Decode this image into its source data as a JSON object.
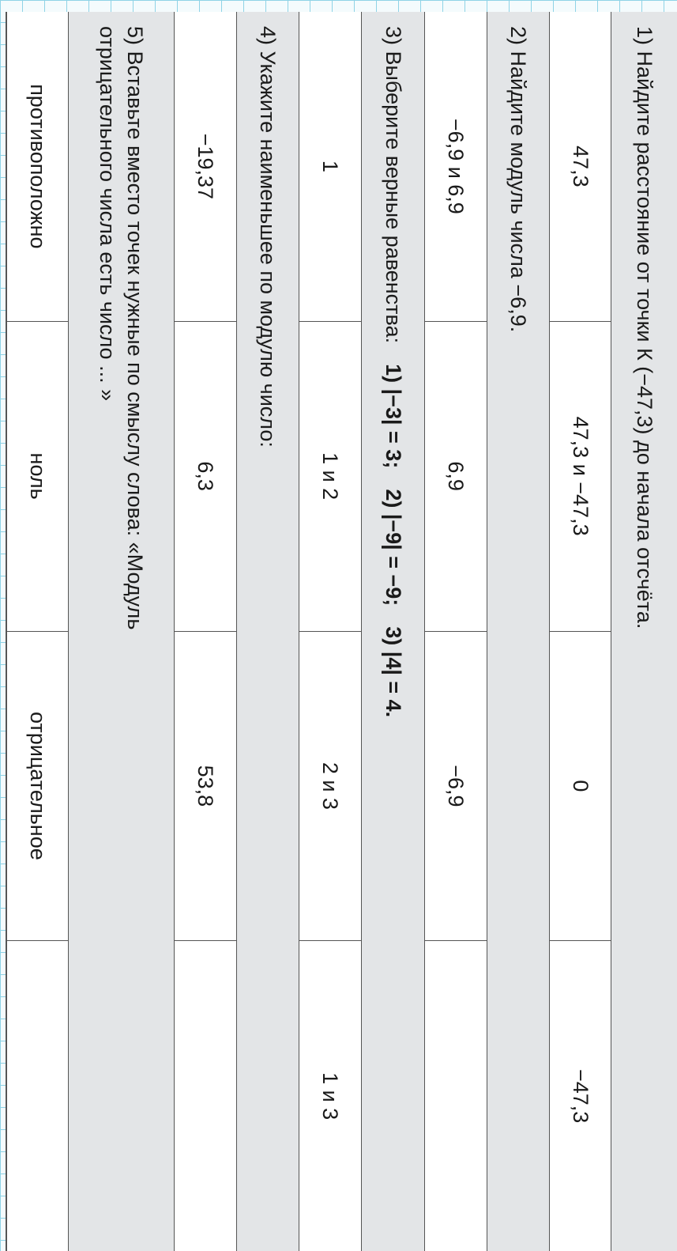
{
  "questions": [
    {
      "text": "1) Найдите расстояние от точки К (−47,3) до начала отсчёта.",
      "options": [
        "47,3",
        "47,3 и −47,3",
        "0",
        "−47,3"
      ]
    },
    {
      "text": "2) Найдите модуль числа −6,9.",
      "options": [
        "−6,9 и 6,9",
        "6,9",
        "−6,9",
        ""
      ]
    },
    {
      "text": "3) Выберите верные равенства:",
      "equalities": [
        "1) |−3| = 3;",
        "2) |−9| = −9;",
        "3) |4| = 4."
      ],
      "options": [
        "1",
        "1 и 2",
        "2 и 3",
        "1 и 3"
      ]
    },
    {
      "text": "4) Укажите наименьшее по модулю число:",
      "options": [
        "−19,37",
        "6,3",
        "53,8",
        ""
      ]
    },
    {
      "line1": "5) Вставьте вместо точек нужные по смыслу слова: «Модуль",
      "line2": "отрицательного числа есть число ... »",
      "options": [
        "противоположно",
        "ноль",
        "отрицательное",
        ""
      ]
    }
  ],
  "colors": {
    "header_bg": "#e3e5e7",
    "border": "#555555",
    "grid": "#8fd3e6"
  }
}
